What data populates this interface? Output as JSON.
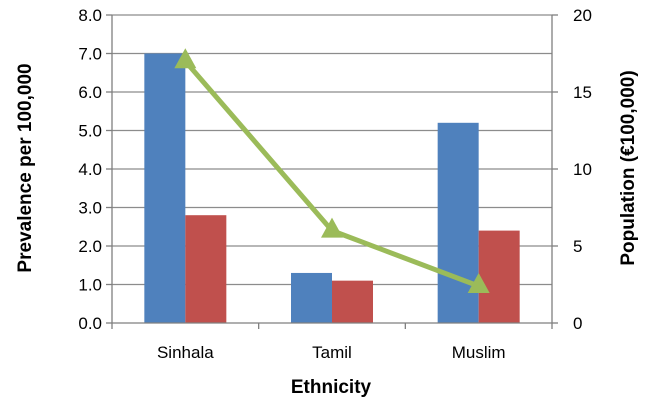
{
  "chart_data": {
    "type": "bar",
    "categories": [
      "Sinhala",
      "Tamil",
      "Muslim"
    ],
    "series": [
      {
        "values": [
          7.0,
          1.3,
          5.2
        ],
        "kind": "bar",
        "axis": "left",
        "color": "#4f81bd"
      },
      {
        "values": [
          2.8,
          1.1,
          2.4
        ],
        "kind": "bar",
        "axis": "left",
        "color": "#c0504d"
      },
      {
        "values": [
          17.0,
          6.0,
          2.4
        ],
        "kind": "line",
        "axis": "right",
        "color": "#9bbb59",
        "marker": "triangle"
      }
    ],
    "xlabel": "Ethnicity",
    "ylabel": "Prevalence per 100,000",
    "y2label": "Population (€100,000)",
    "ylim": [
      0,
      8
    ],
    "y2lim": [
      0,
      20
    ],
    "yticks": [
      "0.0",
      "1.0",
      "2.0",
      "3.0",
      "4.0",
      "5.0",
      "6.0",
      "7.0",
      "8.0"
    ],
    "y2ticks": [
      "0",
      "5",
      "10",
      "15",
      "20"
    ],
    "grid": true,
    "legend": "none"
  }
}
